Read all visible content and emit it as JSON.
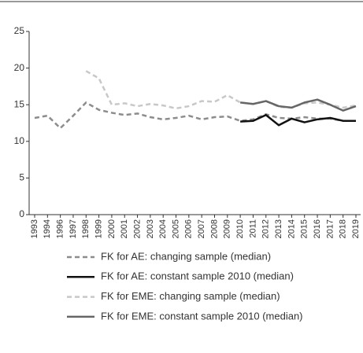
{
  "chart_data": {
    "type": "line",
    "categories": [
      "1993",
      "1994",
      "1996",
      "1997",
      "1998",
      "1999",
      "2000",
      "2001",
      "2002",
      "2003",
      "2004",
      "2005",
      "2006",
      "2007",
      "2008",
      "2009",
      "2010",
      "2011",
      "2012",
      "2013",
      "2014",
      "2015",
      "2016",
      "2017",
      "2018",
      "2019"
    ],
    "ylim": [
      0,
      25
    ],
    "yticks": [
      0,
      5,
      10,
      15,
      20,
      25
    ],
    "grid": false,
    "series": [
      {
        "name": "FK for AE: changing sample (median)",
        "color": "#8c8c8c",
        "dashed": true,
        "values": [
          13.2,
          13.5,
          11.8,
          13.5,
          15.3,
          14.3,
          13.9,
          13.6,
          13.8,
          13.3,
          13.0,
          13.2,
          13.5,
          13.0,
          13.3,
          13.4,
          12.8,
          13.0,
          13.7,
          13.2,
          13.1,
          13.3,
          13.1,
          13.1,
          12.8,
          12.8
        ]
      },
      {
        "name": "FK for AE: constant sample 2010 (median)",
        "color": "#111111",
        "dashed": false,
        "values": [
          null,
          null,
          null,
          null,
          null,
          null,
          null,
          null,
          null,
          null,
          null,
          null,
          null,
          null,
          null,
          null,
          12.7,
          12.8,
          13.6,
          12.2,
          13.1,
          12.6,
          13.0,
          13.2,
          12.8,
          12.8
        ]
      },
      {
        "name": "FK for EME: changing sample (median)",
        "color": "#c8c8c8",
        "dashed": true,
        "values": [
          null,
          null,
          null,
          null,
          19.6,
          18.6,
          15.0,
          15.2,
          14.8,
          15.1,
          14.9,
          14.5,
          14.8,
          15.5,
          15.4,
          16.3,
          15.3,
          15.1,
          15.5,
          14.7,
          14.6,
          15.2,
          15.3,
          15.0,
          14.6,
          14.9
        ]
      },
      {
        "name": "FK for EME: constant sample 2010 (median)",
        "color": "#666666",
        "dashed": false,
        "values": [
          null,
          null,
          null,
          null,
          null,
          null,
          null,
          null,
          null,
          null,
          null,
          null,
          null,
          null,
          null,
          null,
          15.3,
          15.1,
          15.5,
          14.8,
          14.6,
          15.3,
          15.7,
          15.0,
          14.2,
          14.8
        ]
      }
    ]
  }
}
